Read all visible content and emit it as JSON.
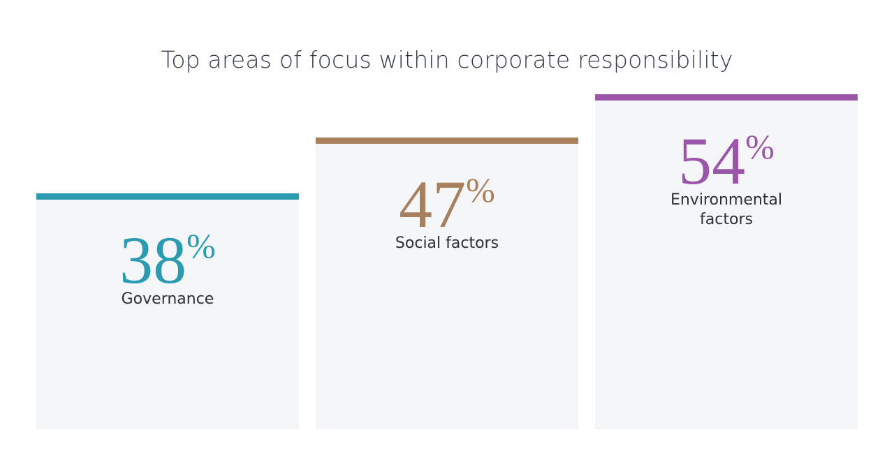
{
  "chart_data": {
    "type": "bar",
    "title": "Top areas of focus within corporate responsibility",
    "categories": [
      "Governance",
      "Social factors",
      "Environmental factors"
    ],
    "values": [
      38,
      47,
      54
    ],
    "value_labels": [
      "38%",
      "47%",
      "54%"
    ],
    "colors": [
      "#2a9bb0",
      "#a8805e",
      "#9b55a9"
    ]
  }
}
